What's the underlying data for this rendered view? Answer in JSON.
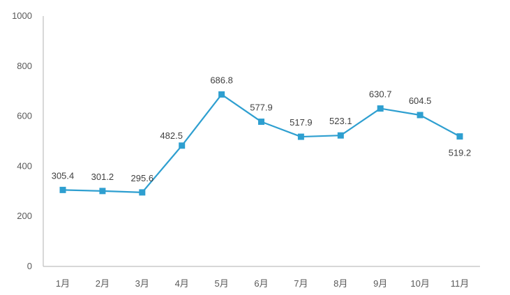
{
  "chart_data": {
    "type": "line",
    "categories": [
      "1月",
      "2月",
      "3月",
      "4月",
      "5月",
      "6月",
      "7月",
      "8月",
      "9月",
      "10月",
      "11月"
    ],
    "series": [
      {
        "values": [
          305.4,
          301.2,
          295.6,
          482.5,
          686.8,
          577.9,
          517.9,
          523.1,
          630.7,
          604.5,
          519.2
        ]
      }
    ],
    "data_labels": [
      "305.4",
      "301.2",
      "295.6",
      "482.5",
      "686.8",
      "577.9",
      "517.9",
      "523.1",
      "630.7",
      "604.5",
      "519.2"
    ],
    "y_ticks": [
      "0",
      "200",
      "400",
      "600",
      "800",
      "1000"
    ],
    "ylim": [
      0,
      1000
    ],
    "grid": false,
    "legend": "none",
    "colors": {
      "series": "#2e9fd0",
      "axis": "#bfbfbf"
    },
    "marker": "square"
  }
}
